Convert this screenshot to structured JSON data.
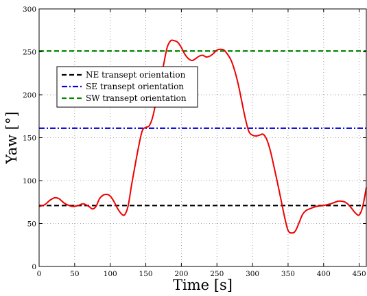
{
  "chart_data": {
    "type": "line",
    "xlabel": "Time [s]",
    "ylabel": "Yaw [°]",
    "xlim": [
      0,
      460
    ],
    "ylim": [
      0,
      300
    ],
    "xticks": [
      0,
      50,
      100,
      150,
      200,
      250,
      300,
      350,
      400,
      450
    ],
    "yticks": [
      0,
      50,
      100,
      150,
      200,
      250,
      300
    ],
    "grid": true,
    "legend_position": "upper-left",
    "series": [
      {
        "name": "NE transept orientation",
        "color": "#000000",
        "style": "dashed",
        "x": [
          0,
          460
        ],
        "y": [
          71,
          71
        ]
      },
      {
        "name": "SE transept orientation",
        "color": "#0000dd",
        "style": "dashdot",
        "x": [
          0,
          460
        ],
        "y": [
          161,
          161
        ]
      },
      {
        "name": "SW transept orientation",
        "color": "#008800",
        "style": "dashed",
        "x": [
          0,
          460
        ],
        "y": [
          251,
          251
        ]
      },
      {
        "color": "#ee0000",
        "style": "solid",
        "x": [
          0,
          8,
          15,
          22,
          28,
          35,
          42,
          48,
          55,
          62,
          70,
          75,
          80,
          85,
          90,
          95,
          100,
          105,
          110,
          115,
          120,
          125,
          130,
          135,
          140,
          145,
          150,
          155,
          160,
          165,
          170,
          175,
          180,
          185,
          190,
          195,
          200,
          205,
          210,
          215,
          220,
          225,
          230,
          235,
          240,
          245,
          250,
          255,
          260,
          265,
          270,
          275,
          280,
          285,
          290,
          295,
          300,
          305,
          310,
          315,
          320,
          325,
          330,
          335,
          340,
          345,
          350,
          355,
          360,
          365,
          370,
          375,
          380,
          390,
          400,
          410,
          420,
          425,
          430,
          435,
          440,
          445,
          450,
          455,
          460
        ],
        "y": [
          70,
          72,
          77,
          80,
          79,
          74,
          71,
          70,
          71,
          73,
          70,
          67,
          70,
          79,
          83,
          84,
          82,
          76,
          68,
          62,
          60,
          70,
          95,
          118,
          140,
          158,
          162,
          164,
          175,
          195,
          215,
          235,
          255,
          263,
          263,
          261,
          255,
          247,
          242,
          240,
          242,
          245,
          246,
          244,
          245,
          248,
          252,
          253,
          252,
          247,
          240,
          228,
          212,
          192,
          172,
          157,
          153,
          152,
          153,
          154,
          148,
          135,
          117,
          98,
          78,
          58,
          42,
          39,
          41,
          50,
          60,
          65,
          67,
          70,
          71,
          73,
          76,
          76,
          75,
          72,
          67,
          62,
          60,
          70,
          92
        ]
      }
    ]
  }
}
